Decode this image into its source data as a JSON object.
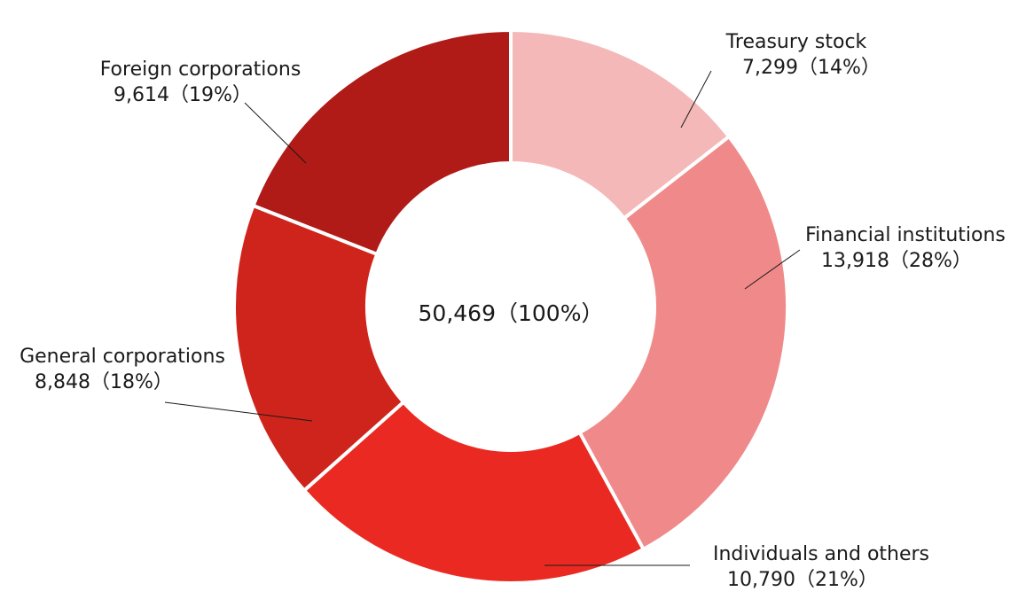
{
  "chart_data": {
    "type": "pie",
    "subtype": "donut",
    "center_label": "50,469（100%）",
    "total": 50469,
    "slices": [
      {
        "name": "Treasury stock",
        "value": 7299,
        "value_label": "7,299（14%）",
        "percent": 14,
        "color": "#f5b8b8"
      },
      {
        "name": "Financial institutions",
        "value": 13918,
        "value_label": "13,918（28%）",
        "percent": 28,
        "color": "#f08a8a"
      },
      {
        "name": "Individuals and others",
        "value": 10790,
        "value_label": "10,790（21%）",
        "percent": 21,
        "color": "#ea2a22"
      },
      {
        "name": "General corporations",
        "value": 8848,
        "value_label": "8,848（18%）",
        "percent": 18,
        "color": "#cf241c"
      },
      {
        "name": "Foreign corporations",
        "value": 9614,
        "value_label": "9,614（19%）",
        "percent": 19,
        "color": "#b01b17"
      }
    ],
    "legend": "none",
    "grid": false
  }
}
